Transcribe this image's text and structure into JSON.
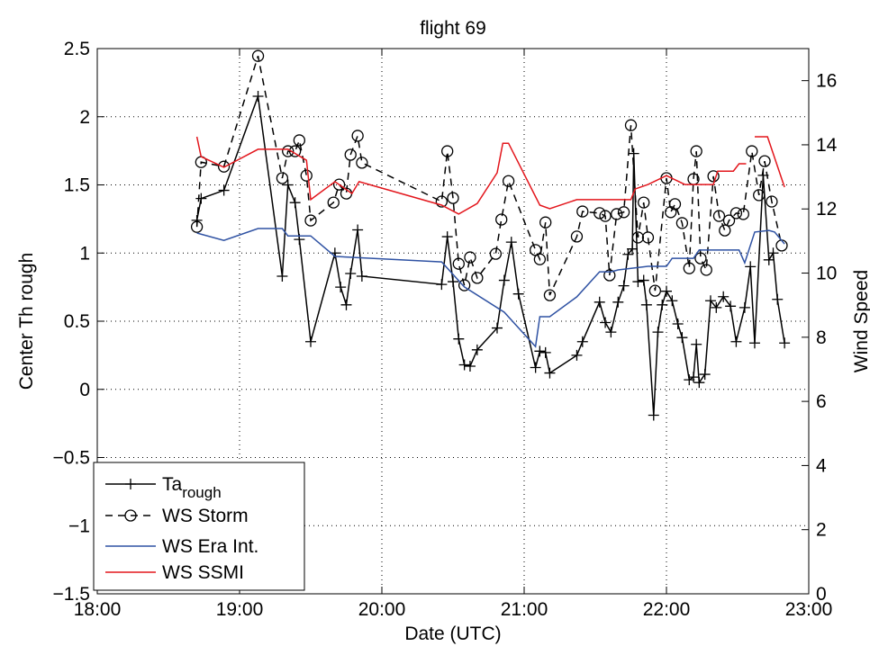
{
  "chart_data": {
    "type": "line",
    "title": "flight 69",
    "x_label": "Date (UTC)",
    "y_label": "Center Th rough",
    "y2_label": "Wind Speed",
    "xlim": [
      18,
      23
    ],
    "xticks": [
      {
        "value": 18,
        "label": "18:00"
      },
      {
        "value": 19,
        "label": "19:00"
      },
      {
        "value": 20,
        "label": "20:00"
      },
      {
        "value": 21,
        "label": "21:00"
      },
      {
        "value": 22,
        "label": "22:00"
      },
      {
        "value": 23,
        "label": "23:00"
      }
    ],
    "ylim": [
      -1.5,
      2.5
    ],
    "yticks": [
      {
        "value": -1.5,
        "label": "−1.5"
      },
      {
        "value": -1,
        "label": "−1"
      },
      {
        "value": -0.5,
        "label": "−0.5"
      },
      0,
      0.5,
      1,
      1.5,
      2,
      2.5
    ],
    "y2lim": [
      0,
      17
    ],
    "y2ticks": [
      0,
      2,
      4,
      6,
      8,
      10,
      12,
      14,
      16
    ],
    "grid": true,
    "legend": "lower left",
    "series": [
      {
        "name": "Ta",
        "subscript": "rough",
        "color": "#000000",
        "marker": "+",
        "dash": false,
        "axis": "y",
        "x": [
          18.7,
          18.73,
          18.89,
          19.13,
          19.3,
          19.34,
          19.39,
          19.42,
          19.5,
          19.67,
          19.71,
          19.75,
          19.78,
          19.83,
          19.86,
          20.42,
          20.46,
          20.5,
          20.54,
          20.58,
          20.62,
          20.67,
          20.81,
          20.86,
          20.91,
          20.96,
          21.08,
          21.11,
          21.15,
          21.18,
          21.37,
          21.41,
          21.53,
          21.57,
          21.61,
          21.66,
          21.7,
          21.73,
          21.76,
          21.77,
          21.8,
          21.84,
          21.86,
          21.91,
          21.94,
          21.97,
          22.0,
          22.04,
          22.08,
          22.11,
          22.16,
          22.19,
          22.21,
          22.23,
          22.27,
          22.31,
          22.35,
          22.4,
          22.45,
          22.49,
          22.55,
          22.59,
          22.62,
          22.68,
          22.72,
          22.75,
          22.78,
          22.83
        ],
        "values": [
          1.24,
          1.4,
          1.46,
          2.15,
          0.83,
          1.5,
          1.37,
          1.1,
          0.35,
          1.0,
          0.75,
          0.62,
          0.85,
          1.17,
          0.83,
          0.77,
          1.12,
          0.79,
          0.37,
          0.18,
          0.17,
          0.29,
          0.45,
          0.8,
          1.08,
          0.7,
          0.16,
          0.28,
          0.27,
          0.12,
          0.25,
          0.35,
          0.64,
          0.49,
          0.42,
          0.64,
          0.76,
          0.99,
          1.03,
          1.73,
          0.79,
          0.8,
          0.62,
          -0.19,
          0.42,
          0.62,
          0.72,
          0.65,
          0.48,
          0.38,
          0.07,
          0.09,
          0.33,
          0.05,
          0.11,
          0.65,
          0.6,
          0.68,
          0.61,
          0.35,
          0.6,
          0.9,
          0.34,
          1.57,
          0.95,
          1.0,
          0.66,
          0.34
        ]
      },
      {
        "name": "WS Storm",
        "color": "#000000",
        "marker": "o",
        "dash": true,
        "axis": "y2",
        "x": [
          18.7,
          18.73,
          18.89,
          19.13,
          19.3,
          19.34,
          19.39,
          19.42,
          19.47,
          19.5,
          19.66,
          19.7,
          19.75,
          19.78,
          19.83,
          19.86,
          20.42,
          20.46,
          20.5,
          20.54,
          20.58,
          20.62,
          20.67,
          20.8,
          20.84,
          20.89,
          21.08,
          21.11,
          21.15,
          21.18,
          21.37,
          21.41,
          21.53,
          21.57,
          21.6,
          21.65,
          21.7,
          21.75,
          21.8,
          21.84,
          21.87,
          21.92,
          22.0,
          22.03,
          22.06,
          22.11,
          22.16,
          22.19,
          22.21,
          22.24,
          22.28,
          22.33,
          22.37,
          22.41,
          22.44,
          22.49,
          22.54,
          22.6,
          22.65,
          22.69,
          22.74,
          22.81
        ],
        "values": [
          11.44,
          13.46,
          13.32,
          16.77,
          12.96,
          13.8,
          13.8,
          14.14,
          13.04,
          11.64,
          12.2,
          12.76,
          12.48,
          13.69,
          14.28,
          13.44,
          12.23,
          13.8,
          12.34,
          10.29,
          9.62,
          10.49,
          9.85,
          10.6,
          11.67,
          12.87,
          10.72,
          10.43,
          11.58,
          9.31,
          11.14,
          11.92,
          11.87,
          11.78,
          9.93,
          11.84,
          11.9,
          14.61,
          11.11,
          12.2,
          11.11,
          9.45,
          12.96,
          11.9,
          12.15,
          11.56,
          10.15,
          12.93,
          13.8,
          10.46,
          10.1,
          13.02,
          11.78,
          11.33,
          11.64,
          11.87,
          11.84,
          13.8,
          12.43,
          13.49,
          12.23,
          10.86
        ]
      },
      {
        "name": "WS Era Int.",
        "color": "#2f52a3",
        "marker": null,
        "dash": false,
        "axis": "y2",
        "x": [
          18.7,
          18.89,
          19.13,
          19.3,
          19.34,
          19.5,
          19.67,
          20.42,
          20.58,
          20.86,
          21.08,
          21.11,
          21.18,
          21.37,
          21.53,
          21.61,
          21.66,
          21.87,
          22.0,
          22.04,
          22.19,
          22.23,
          22.51,
          22.55,
          22.62,
          22.72,
          22.76,
          22.83
        ],
        "values": [
          11.25,
          11.02,
          11.39,
          11.39,
          11.16,
          11.16,
          10.52,
          10.35,
          9.57,
          8.78,
          7.71,
          8.64,
          8.64,
          9.26,
          10.04,
          10.04,
          10.1,
          10.21,
          10.21,
          10.46,
          10.46,
          10.72,
          10.72,
          10.32,
          11.28,
          11.33,
          11.28,
          10.91
        ]
      },
      {
        "name": "WS SSMI",
        "color": "#e3161c",
        "marker": null,
        "dash": false,
        "axis": "y2",
        "x": [
          18.7,
          18.73,
          18.89,
          19.13,
          19.34,
          19.47,
          19.5,
          19.67,
          19.79,
          19.84,
          20.42,
          20.54,
          20.67,
          20.81,
          20.85,
          20.89,
          21.11,
          21.18,
          21.37,
          21.75,
          21.78,
          21.87,
          22.0,
          22.13,
          22.33,
          22.36,
          22.47,
          22.51,
          22.56,
          null,
          22.62,
          22.71,
          22.83
        ],
        "values": [
          14.25,
          13.63,
          13.3,
          13.86,
          13.86,
          13.52,
          12.29,
          12.85,
          12.48,
          12.85,
          12.12,
          11.84,
          12.17,
          13.13,
          14.05,
          14.05,
          12.12,
          12.01,
          12.29,
          12.29,
          12.62,
          12.76,
          13.04,
          12.76,
          12.76,
          13.18,
          13.18,
          13.41,
          13.41,
          null,
          14.25,
          14.25,
          12.68
        ]
      }
    ]
  }
}
